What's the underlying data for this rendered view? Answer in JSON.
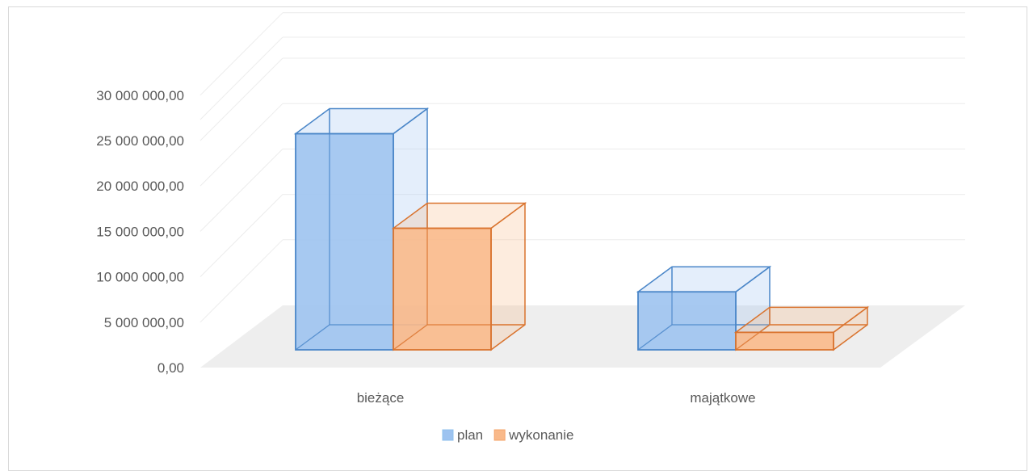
{
  "chart_data": {
    "type": "bar",
    "style": "3d-column",
    "categories": [
      "bieżące",
      "majątkowe"
    ],
    "series": [
      {
        "name": "plan",
        "values": [
          27200000,
          7300000
        ],
        "fill": "#9dc3f0",
        "stroke": "#4a86c8"
      },
      {
        "name": "wykonanie",
        "values": [
          15300000,
          2200000
        ],
        "fill": "#f9b98a",
        "stroke": "#d9732e"
      }
    ],
    "y_ticks": [
      "0,00",
      "5 000 000,00",
      "10 000 000,00",
      "15 000 000,00",
      "20 000 000,00",
      "25 000 000,00",
      "30 000 000,00"
    ],
    "ylim": [
      0,
      30000000
    ],
    "grid": true,
    "legend_position": "bottom"
  }
}
